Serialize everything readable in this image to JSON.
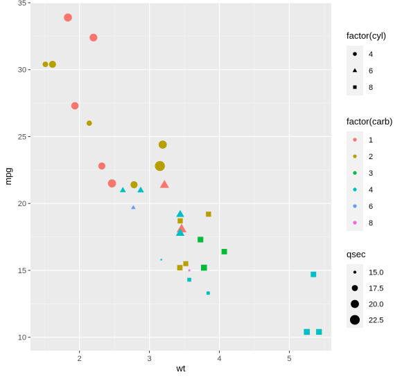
{
  "chart_data": {
    "type": "scatter",
    "xlabel": "wt",
    "ylabel": "mpg",
    "xlim": [
      1.3,
      5.6
    ],
    "ylim": [
      9.0,
      35.0
    ],
    "x_ticks": [
      2,
      3,
      4,
      5
    ],
    "y_ticks": [
      10,
      15,
      20,
      25,
      30,
      35
    ],
    "grid": true,
    "panel_background": "#ebebeb",
    "legend_placement": "right",
    "colors": {
      "1": "#f8766d",
      "2": "#b79f00",
      "3": "#00ba38",
      "4": "#00bfc4",
      "6": "#619cff",
      "8": "#f564e3"
    },
    "shapes": {
      "4": "circle",
      "6": "triangle",
      "8": "square"
    },
    "legends": [
      {
        "title": "factor(cyl)",
        "kind": "shape",
        "items": [
          {
            "label": "4",
            "shape": "circle"
          },
          {
            "label": "6",
            "shape": "triangle"
          },
          {
            "label": "8",
            "shape": "square"
          }
        ]
      },
      {
        "title": "factor(carb)",
        "kind": "color",
        "items": [
          {
            "label": "1",
            "key": "1"
          },
          {
            "label": "2",
            "key": "2"
          },
          {
            "label": "3",
            "key": "3"
          },
          {
            "label": "4",
            "key": "4"
          },
          {
            "label": "6",
            "key": "6"
          },
          {
            "label": "8",
            "key": "8"
          }
        ]
      },
      {
        "title": "qsec",
        "kind": "size",
        "items": [
          {
            "label": "15.0",
            "value": 15.0
          },
          {
            "label": "17.5",
            "value": 17.5
          },
          {
            "label": "20.0",
            "value": 20.0
          },
          {
            "label": "22.5",
            "value": 22.5
          }
        ]
      }
    ],
    "points": [
      {
        "wt": 1.835,
        "mpg": 33.9,
        "cyl": "4",
        "carb": "1",
        "qsec": 19.9
      },
      {
        "wt": 2.2,
        "mpg": 32.4,
        "cyl": "4",
        "carb": "1",
        "qsec": 19.47
      },
      {
        "wt": 1.513,
        "mpg": 30.4,
        "cyl": "4",
        "carb": "2",
        "qsec": 16.9
      },
      {
        "wt": 1.615,
        "mpg": 30.4,
        "cyl": "4",
        "carb": "2",
        "qsec": 18.52
      },
      {
        "wt": 1.935,
        "mpg": 27.3,
        "cyl": "4",
        "carb": "1",
        "qsec": 18.9
      },
      {
        "wt": 2.14,
        "mpg": 26.0,
        "cyl": "4",
        "carb": "2",
        "qsec": 16.7
      },
      {
        "wt": 3.19,
        "mpg": 24.4,
        "cyl": "4",
        "carb": "2",
        "qsec": 20.0
      },
      {
        "wt": 3.15,
        "mpg": 22.8,
        "cyl": "4",
        "carb": "2",
        "qsec": 22.9
      },
      {
        "wt": 2.32,
        "mpg": 22.8,
        "cyl": "4",
        "carb": "1",
        "qsec": 18.61
      },
      {
        "wt": 2.465,
        "mpg": 21.5,
        "cyl": "4",
        "carb": "1",
        "qsec": 20.01
      },
      {
        "wt": 2.78,
        "mpg": 21.4,
        "cyl": "4",
        "carb": "2",
        "qsec": 18.6
      },
      {
        "wt": 3.215,
        "mpg": 21.4,
        "cyl": "6",
        "carb": "1",
        "qsec": 19.44
      },
      {
        "wt": 2.62,
        "mpg": 21.0,
        "cyl": "6",
        "carb": "4",
        "qsec": 16.46
      },
      {
        "wt": 2.875,
        "mpg": 21.0,
        "cyl": "6",
        "carb": "4",
        "qsec": 17.02
      },
      {
        "wt": 2.77,
        "mpg": 19.7,
        "cyl": "6",
        "carb": "6",
        "qsec": 15.5
      },
      {
        "wt": 3.44,
        "mpg": 19.2,
        "cyl": "6",
        "carb": "4",
        "qsec": 18.3
      },
      {
        "wt": 3.46,
        "mpg": 18.1,
        "cyl": "6",
        "carb": "1",
        "qsec": 20.22
      },
      {
        "wt": 3.44,
        "mpg": 17.8,
        "cyl": "6",
        "carb": "4",
        "qsec": 18.9
      },
      {
        "wt": 3.44,
        "mpg": 18.7,
        "cyl": "8",
        "carb": "2",
        "qsec": 17.02
      },
      {
        "wt": 3.845,
        "mpg": 19.2,
        "cyl": "8",
        "carb": "2",
        "qsec": 17.05
      },
      {
        "wt": 3.73,
        "mpg": 17.3,
        "cyl": "8",
        "carb": "3",
        "qsec": 17.6
      },
      {
        "wt": 4.07,
        "mpg": 16.4,
        "cyl": "8",
        "carb": "3",
        "qsec": 17.4
      },
      {
        "wt": 3.52,
        "mpg": 15.5,
        "cyl": "8",
        "carb": "2",
        "qsec": 16.87
      },
      {
        "wt": 3.435,
        "mpg": 15.2,
        "cyl": "8",
        "carb": "2",
        "qsec": 17.3
      },
      {
        "wt": 3.78,
        "mpg": 15.2,
        "cyl": "8",
        "carb": "3",
        "qsec": 18.0
      },
      {
        "wt": 3.17,
        "mpg": 15.8,
        "cyl": "8",
        "carb": "4",
        "qsec": 14.5
      },
      {
        "wt": 3.57,
        "mpg": 15.0,
        "cyl": "8",
        "carb": "8",
        "qsec": 14.6
      },
      {
        "wt": 3.57,
        "mpg": 14.3,
        "cyl": "8",
        "carb": "4",
        "qsec": 15.84
      },
      {
        "wt": 3.84,
        "mpg": 13.3,
        "cyl": "8",
        "carb": "4",
        "qsec": 15.41
      },
      {
        "wt": 5.345,
        "mpg": 14.7,
        "cyl": "8",
        "carb": "4",
        "qsec": 17.42
      },
      {
        "wt": 5.25,
        "mpg": 10.4,
        "cyl": "8",
        "carb": "4",
        "qsec": 17.98
      },
      {
        "wt": 5.424,
        "mpg": 10.4,
        "cyl": "8",
        "carb": "4",
        "qsec": 17.82
      }
    ]
  }
}
